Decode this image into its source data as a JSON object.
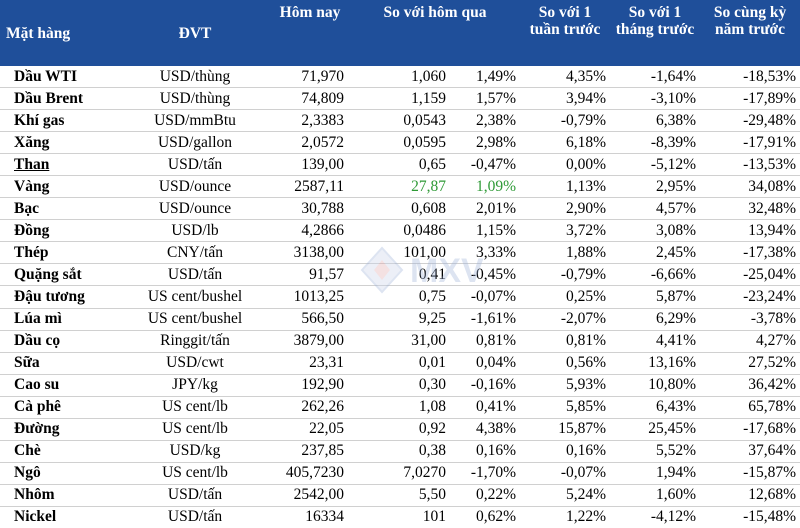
{
  "table": {
    "headers": {
      "item": "Mặt hàng",
      "unit": "ĐVT",
      "today": "Hôm nay",
      "vs_yesterday": "So với hôm qua",
      "vs_week": "So với 1 tuần trước",
      "vs_month": "So với 1 tháng trước",
      "vs_year": "So cùng kỳ năm trước"
    },
    "rows": [
      {
        "name": "Dầu WTI",
        "unit": "USD/thùng",
        "today": "71,970",
        "chg": "1,060",
        "chg_pct": "1,49%",
        "week": "4,35%",
        "month": "-1,64%",
        "year": "-18,53%"
      },
      {
        "name": "Dầu Brent",
        "unit": "USD/thùng",
        "today": "74,809",
        "chg": "1,159",
        "chg_pct": "1,57%",
        "week": "3,94%",
        "month": "-3,10%",
        "year": "-17,89%"
      },
      {
        "name": "Khí gas",
        "unit": "USD/mmBtu",
        "today": "2,3383",
        "chg": "0,0543",
        "chg_pct": "2,38%",
        "week": "-0,79%",
        "month": "6,38%",
        "year": "-29,48%"
      },
      {
        "name": "Xăng",
        "unit": "USD/gallon",
        "today": "2,0572",
        "chg": "0,0595",
        "chg_pct": "2,98%",
        "week": "6,18%",
        "month": "-8,39%",
        "year": "-17,91%"
      },
      {
        "name": "Than",
        "unit": "USD/tấn",
        "today": "139,00",
        "chg": "0,65",
        "chg_pct": "-0,47%",
        "week": "0,00%",
        "month": "-5,12%",
        "year": "-13,53%"
      },
      {
        "name": "Vàng",
        "unit": "USD/ounce",
        "today": "2587,11",
        "chg": "27,87",
        "chg_pct": "1,09%",
        "week": "1,13%",
        "month": "2,95%",
        "year": "34,08%"
      },
      {
        "name": "Bạc",
        "unit": "USD/ounce",
        "today": "30,788",
        "chg": "0,608",
        "chg_pct": "2,01%",
        "week": "2,90%",
        "month": "4,57%",
        "year": "32,48%"
      },
      {
        "name": "Đồng",
        "unit": "USD/lb",
        "today": "4,2866",
        "chg": "0,0486",
        "chg_pct": "1,15%",
        "week": "3,72%",
        "month": "3,08%",
        "year": "13,94%"
      },
      {
        "name": "Thép",
        "unit": "CNY/tấn",
        "today": "3138,00",
        "chg": "101,00",
        "chg_pct": "3,33%",
        "week": "1,88%",
        "month": "2,45%",
        "year": "-17,38%"
      },
      {
        "name": "Quặng sắt",
        "unit": "USD/tấn",
        "today": "91,57",
        "chg": "0,41",
        "chg_pct": "-0,45%",
        "week": "-0,79%",
        "month": "-6,66%",
        "year": "-25,04%"
      },
      {
        "name": "Đậu tương",
        "unit": "US cent/bushel",
        "today": "1013,25",
        "chg": "0,75",
        "chg_pct": "-0,07%",
        "week": "0,25%",
        "month": "5,87%",
        "year": "-23,24%"
      },
      {
        "name": "Lúa mì",
        "unit": "US cent/bushel",
        "today": "566,50",
        "chg": "9,25",
        "chg_pct": "-1,61%",
        "week": "-2,07%",
        "month": "6,29%",
        "year": "-3,78%"
      },
      {
        "name": "Dầu cọ",
        "unit": "Ringgit/tấn",
        "today": "3879,00",
        "chg": "31,00",
        "chg_pct": "0,81%",
        "week": "0,81%",
        "month": "4,41%",
        "year": "4,27%"
      },
      {
        "name": "Sữa",
        "unit": "USD/cwt",
        "today": "23,31",
        "chg": "0,01",
        "chg_pct": "0,04%",
        "week": "0,56%",
        "month": "13,16%",
        "year": "27,52%"
      },
      {
        "name": "Cao su",
        "unit": "JPY/kg",
        "today": "192,90",
        "chg": "0,30",
        "chg_pct": "-0,16%",
        "week": "5,93%",
        "month": "10,80%",
        "year": "36,42%"
      },
      {
        "name": "Cà phê",
        "unit": "US cent/lb",
        "today": "262,26",
        "chg": "1,08",
        "chg_pct": "0,41%",
        "week": "5,85%",
        "month": "6,43%",
        "year": "65,78%"
      },
      {
        "name": "Đường",
        "unit": "US cent/lb",
        "today": "22,05",
        "chg": "0,92",
        "chg_pct": "4,38%",
        "week": "15,87%",
        "month": "25,45%",
        "year": "-17,68%"
      },
      {
        "name": "Chè",
        "unit": "USD/kg",
        "today": "237,85",
        "chg": "0,38",
        "chg_pct": "0,16%",
        "week": "0,16%",
        "month": "5,52%",
        "year": "37,64%"
      },
      {
        "name": "Ngô",
        "unit": "US cent/lb",
        "today": "405,7230",
        "chg": "7,0270",
        "chg_pct": "-1,70%",
        "week": "-0,07%",
        "month": "1,94%",
        "year": "-15,87%"
      },
      {
        "name": "Nhôm",
        "unit": "USD/tấn",
        "today": "2542,00",
        "chg": "5,50",
        "chg_pct": "0,22%",
        "week": "5,24%",
        "month": "1,60%",
        "year": "12,68%"
      },
      {
        "name": "Nickel",
        "unit": "USD/tấn",
        "today": "16334",
        "chg": "101",
        "chg_pct": "0,62%",
        "week": "1,22%",
        "month": "-4,12%",
        "year": "-15,48%"
      }
    ]
  },
  "watermark": {
    "text": "MXV",
    "color": "#9fb3d9"
  },
  "colors": {
    "header_bg": "#1f4f9a",
    "header_text": "#ffffff",
    "positive_highlight": "#2e9a36"
  },
  "highlight_row": "Vàng",
  "underlined_row": "Than"
}
